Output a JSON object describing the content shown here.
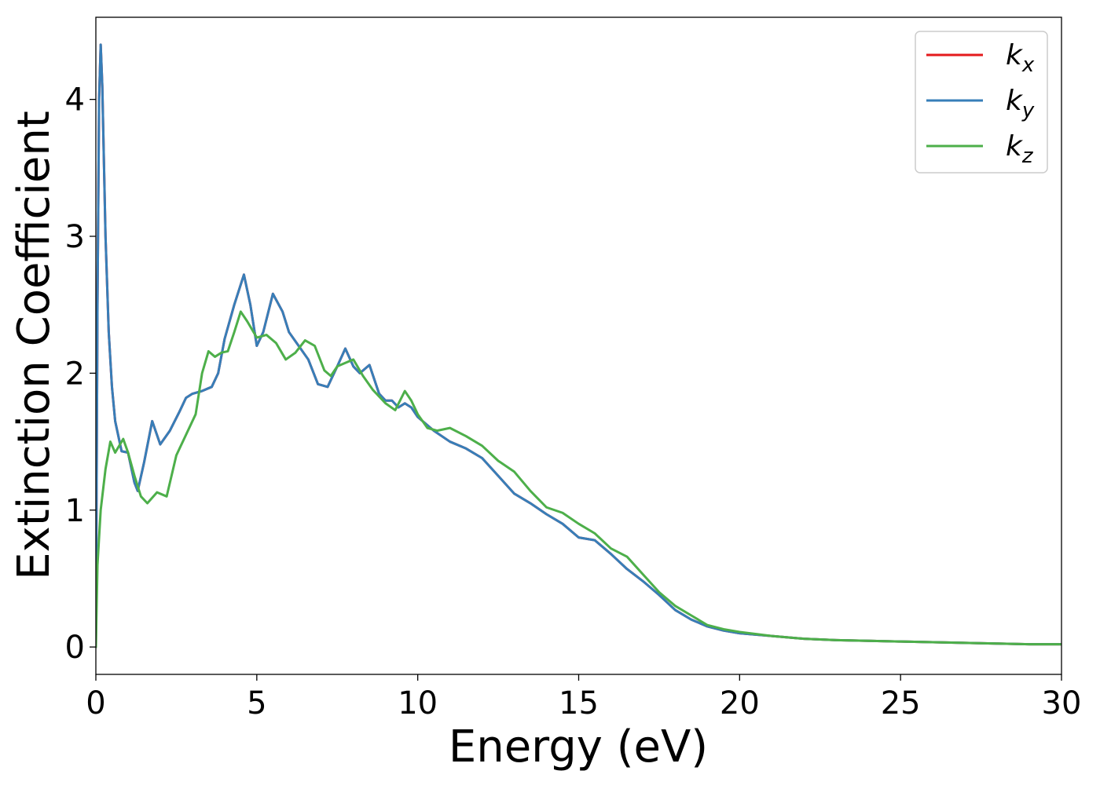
{
  "chart_data": {
    "type": "line",
    "xlabel": "Energy (eV)",
    "ylabel": "Extinction Coefficient",
    "xlim": [
      0,
      30
    ],
    "ylim": [
      -0.2,
      4.6
    ],
    "xticks": [
      0,
      5,
      10,
      15,
      20,
      25,
      30
    ],
    "yticks": [
      0,
      1,
      2,
      3,
      4
    ],
    "grid": false,
    "legend_position": "top-right",
    "series": [
      {
        "name_base": "k",
        "name_sub": "x",
        "color": "#e41a1c",
        "x": [
          0,
          0.05,
          0.1,
          0.15,
          0.2,
          0.3,
          0.4,
          0.5,
          0.6,
          0.8,
          1.0,
          1.2,
          1.3,
          1.5,
          1.75,
          2.0,
          2.3,
          2.6,
          2.8,
          3.0,
          3.3,
          3.6,
          3.8,
          4.0,
          4.3,
          4.6,
          4.8,
          5.0,
          5.2,
          5.5,
          5.8,
          6.0,
          6.3,
          6.6,
          6.9,
          7.2,
          7.5,
          7.75,
          8.0,
          8.2,
          8.5,
          8.8,
          9.0,
          9.2,
          9.4,
          9.6,
          9.8,
          10.0,
          10.5,
          11.0,
          11.5,
          12.0,
          12.5,
          13.0,
          13.5,
          14.0,
          14.5,
          15.0,
          15.5,
          16.0,
          16.5,
          17.0,
          17.5,
          18.0,
          18.5,
          19.0,
          19.5,
          20.0,
          21.0,
          22.0,
          23.0,
          24.0,
          25.0,
          26.0,
          27.0,
          28.0,
          29.0,
          30.0
        ],
        "y": [
          0,
          2.5,
          4.0,
          4.4,
          4.1,
          3.0,
          2.3,
          1.9,
          1.65,
          1.43,
          1.42,
          1.2,
          1.14,
          1.35,
          1.65,
          1.48,
          1.58,
          1.72,
          1.82,
          1.85,
          1.87,
          1.9,
          2.0,
          2.25,
          2.5,
          2.72,
          2.5,
          2.2,
          2.3,
          2.58,
          2.45,
          2.3,
          2.2,
          2.1,
          1.92,
          1.9,
          2.05,
          2.18,
          2.05,
          2.0,
          2.06,
          1.85,
          1.8,
          1.8,
          1.75,
          1.78,
          1.75,
          1.68,
          1.58,
          1.5,
          1.45,
          1.38,
          1.25,
          1.12,
          1.05,
          0.97,
          0.9,
          0.8,
          0.78,
          0.68,
          0.57,
          0.48,
          0.38,
          0.27,
          0.2,
          0.15,
          0.12,
          0.1,
          0.08,
          0.06,
          0.05,
          0.045,
          0.04,
          0.035,
          0.03,
          0.025,
          0.02,
          0.02
        ]
      },
      {
        "name_base": "k",
        "name_sub": "y",
        "color": "#377eb8",
        "x": [
          0,
          0.05,
          0.1,
          0.15,
          0.2,
          0.3,
          0.4,
          0.5,
          0.6,
          0.8,
          1.0,
          1.2,
          1.3,
          1.5,
          1.75,
          2.0,
          2.3,
          2.6,
          2.8,
          3.0,
          3.3,
          3.6,
          3.8,
          4.0,
          4.3,
          4.6,
          4.8,
          5.0,
          5.2,
          5.5,
          5.8,
          6.0,
          6.3,
          6.6,
          6.9,
          7.2,
          7.5,
          7.75,
          8.0,
          8.2,
          8.5,
          8.8,
          9.0,
          9.2,
          9.4,
          9.6,
          9.8,
          10.0,
          10.5,
          11.0,
          11.5,
          12.0,
          12.5,
          13.0,
          13.5,
          14.0,
          14.5,
          15.0,
          15.5,
          16.0,
          16.5,
          17.0,
          17.5,
          18.0,
          18.5,
          19.0,
          19.5,
          20.0,
          21.0,
          22.0,
          23.0,
          24.0,
          25.0,
          26.0,
          27.0,
          28.0,
          29.0,
          30.0
        ],
        "y": [
          0,
          2.5,
          4.0,
          4.4,
          4.1,
          3.0,
          2.3,
          1.9,
          1.65,
          1.43,
          1.42,
          1.2,
          1.14,
          1.35,
          1.65,
          1.48,
          1.58,
          1.72,
          1.82,
          1.85,
          1.87,
          1.9,
          2.0,
          2.25,
          2.5,
          2.72,
          2.5,
          2.2,
          2.3,
          2.58,
          2.45,
          2.3,
          2.2,
          2.1,
          1.92,
          1.9,
          2.05,
          2.18,
          2.05,
          2.0,
          2.06,
          1.85,
          1.8,
          1.8,
          1.75,
          1.78,
          1.75,
          1.68,
          1.58,
          1.5,
          1.45,
          1.38,
          1.25,
          1.12,
          1.05,
          0.97,
          0.9,
          0.8,
          0.78,
          0.68,
          0.57,
          0.48,
          0.38,
          0.27,
          0.2,
          0.15,
          0.12,
          0.1,
          0.08,
          0.06,
          0.05,
          0.045,
          0.04,
          0.035,
          0.03,
          0.025,
          0.02,
          0.02
        ]
      },
      {
        "name_base": "k",
        "name_sub": "z",
        "color": "#4daf4a",
        "x": [
          0,
          0.05,
          0.15,
          0.3,
          0.45,
          0.6,
          0.85,
          1.0,
          1.2,
          1.4,
          1.6,
          1.9,
          2.2,
          2.5,
          2.8,
          3.1,
          3.3,
          3.5,
          3.7,
          3.9,
          4.1,
          4.3,
          4.5,
          4.7,
          5.0,
          5.3,
          5.6,
          5.9,
          6.2,
          6.5,
          6.8,
          7.1,
          7.3,
          7.5,
          7.8,
          8.0,
          8.3,
          8.6,
          9.0,
          9.3,
          9.6,
          9.8,
          10.0,
          10.3,
          10.6,
          11.0,
          11.5,
          12.0,
          12.5,
          13.0,
          13.5,
          14.0,
          14.5,
          15.0,
          15.5,
          16.0,
          16.5,
          17.0,
          17.5,
          18.0,
          18.5,
          19.0,
          19.5,
          20.0,
          21.0,
          22.0,
          23.0,
          24.0,
          25.0,
          26.0,
          27.0,
          28.0,
          29.0,
          30.0
        ],
        "y": [
          0,
          0.6,
          1.0,
          1.3,
          1.5,
          1.42,
          1.52,
          1.42,
          1.25,
          1.1,
          1.05,
          1.13,
          1.1,
          1.4,
          1.55,
          1.7,
          2.0,
          2.16,
          2.12,
          2.15,
          2.16,
          2.3,
          2.45,
          2.38,
          2.26,
          2.28,
          2.22,
          2.1,
          2.15,
          2.24,
          2.2,
          2.02,
          1.98,
          2.05,
          2.08,
          2.1,
          1.98,
          1.88,
          1.78,
          1.73,
          1.87,
          1.8,
          1.7,
          1.6,
          1.58,
          1.6,
          1.54,
          1.47,
          1.36,
          1.28,
          1.14,
          1.02,
          0.98,
          0.9,
          0.83,
          0.72,
          0.66,
          0.53,
          0.4,
          0.3,
          0.23,
          0.16,
          0.13,
          0.11,
          0.08,
          0.06,
          0.05,
          0.045,
          0.04,
          0.035,
          0.03,
          0.025,
          0.02,
          0.02
        ]
      }
    ]
  }
}
